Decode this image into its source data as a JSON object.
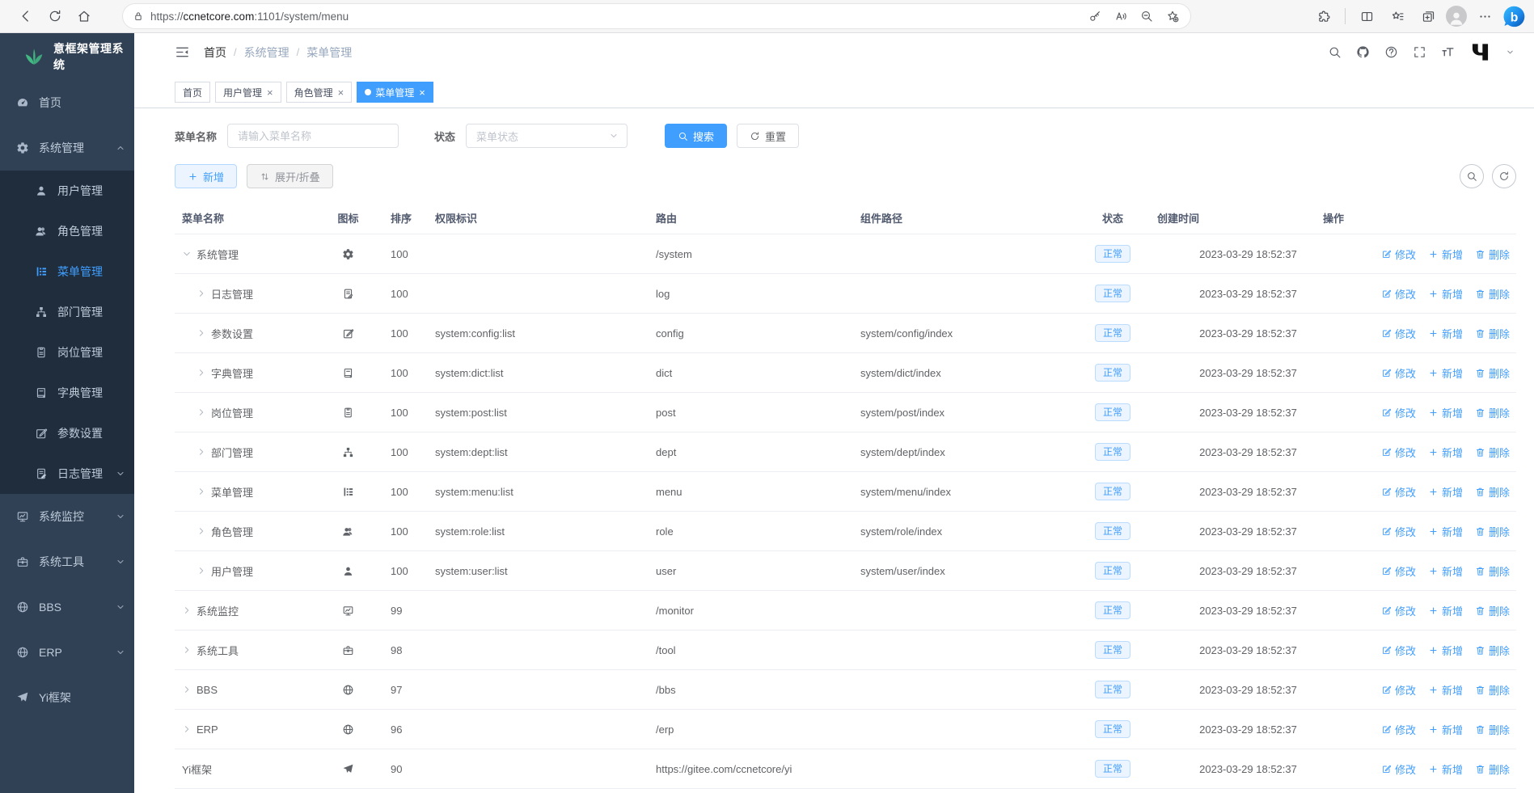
{
  "browser": {
    "url_scheme": "https://",
    "url_domain": "ccnetcore.com",
    "url_rest": ":1101/system/menu"
  },
  "sidebar": {
    "title": "意框架管理系统",
    "menu": [
      {
        "key": "home",
        "label": "首页",
        "icon": "dashboard",
        "level": "top"
      },
      {
        "key": "system",
        "label": "系统管理",
        "icon": "gear",
        "level": "top",
        "caret": "up"
      },
      {
        "key": "user",
        "label": "用户管理",
        "icon": "user",
        "level": "sub"
      },
      {
        "key": "role",
        "label": "角色管理",
        "icon": "users",
        "level": "sub"
      },
      {
        "key": "menu",
        "label": "菜单管理",
        "icon": "tree",
        "level": "sub",
        "active": true
      },
      {
        "key": "dept",
        "label": "部门管理",
        "icon": "org",
        "level": "sub"
      },
      {
        "key": "post",
        "label": "岗位管理",
        "icon": "post",
        "level": "sub"
      },
      {
        "key": "dict",
        "label": "字典管理",
        "icon": "dict",
        "level": "sub"
      },
      {
        "key": "config",
        "label": "参数设置",
        "icon": "edit",
        "level": "sub"
      },
      {
        "key": "log",
        "label": "日志管理",
        "icon": "log",
        "level": "sub",
        "caret": "down"
      },
      {
        "key": "monitor",
        "label": "系统监控",
        "icon": "monitor",
        "level": "top",
        "caret": "down"
      },
      {
        "key": "tool",
        "label": "系统工具",
        "icon": "tool",
        "level": "top",
        "caret": "down"
      },
      {
        "key": "bbs",
        "label": "BBS",
        "icon": "globe",
        "level": "top",
        "caret": "down"
      },
      {
        "key": "erp",
        "label": "ERP",
        "icon": "globe",
        "level": "top",
        "caret": "down"
      },
      {
        "key": "yi",
        "label": "Yi框架",
        "icon": "send",
        "level": "top"
      }
    ]
  },
  "topbar": {
    "breadcrumb": [
      "首页",
      "系统管理",
      "菜单管理"
    ]
  },
  "tabs": [
    {
      "key": "home",
      "label": "首页"
    },
    {
      "key": "user",
      "label": "用户管理",
      "closable": true
    },
    {
      "key": "role",
      "label": "角色管理",
      "closable": true
    },
    {
      "key": "menu",
      "label": "菜单管理",
      "closable": true,
      "active": true
    }
  ],
  "filter": {
    "name_label": "菜单名称",
    "name_placeholder": "请输入菜单名称",
    "status_label": "状态",
    "status_placeholder": "菜单状态",
    "search": "搜索",
    "reset": "重置"
  },
  "toolbar": {
    "add": "新增",
    "toggle": "展开/折叠"
  },
  "table": {
    "columns": [
      {
        "key": "name",
        "label": "菜单名称"
      },
      {
        "key": "icon",
        "label": "图标"
      },
      {
        "key": "sort",
        "label": "排序"
      },
      {
        "key": "perm",
        "label": "权限标识"
      },
      {
        "key": "route",
        "label": "路由"
      },
      {
        "key": "comp",
        "label": "组件路径"
      },
      {
        "key": "status",
        "label": "状态"
      },
      {
        "key": "time",
        "label": "创建时间"
      },
      {
        "key": "ops",
        "label": "操作"
      }
    ],
    "ops": {
      "edit": "修改",
      "add": "新增",
      "del": "删除"
    },
    "rows": [
      {
        "name": "系统管理",
        "level": 0,
        "arrow": "down",
        "icon": "gear",
        "sort": "100",
        "perm": "",
        "route": "/system",
        "comp": "",
        "status": "正常",
        "time": "2023-03-29 18:52:37"
      },
      {
        "name": "日志管理",
        "level": 1,
        "arrow": "right",
        "icon": "log",
        "sort": "100",
        "perm": "",
        "route": "log",
        "comp": "",
        "status": "正常",
        "time": "2023-03-29 18:52:37"
      },
      {
        "name": "参数设置",
        "level": 1,
        "arrow": "right",
        "icon": "edit",
        "sort": "100",
        "perm": "system:config:list",
        "route": "config",
        "comp": "system/config/index",
        "status": "正常",
        "time": "2023-03-29 18:52:37"
      },
      {
        "name": "字典管理",
        "level": 1,
        "arrow": "right",
        "icon": "dict",
        "sort": "100",
        "perm": "system:dict:list",
        "route": "dict",
        "comp": "system/dict/index",
        "status": "正常",
        "time": "2023-03-29 18:52:37"
      },
      {
        "name": "岗位管理",
        "level": 1,
        "arrow": "right",
        "icon": "post",
        "sort": "100",
        "perm": "system:post:list",
        "route": "post",
        "comp": "system/post/index",
        "status": "正常",
        "time": "2023-03-29 18:52:37"
      },
      {
        "name": "部门管理",
        "level": 1,
        "arrow": "right",
        "icon": "org",
        "sort": "100",
        "perm": "system:dept:list",
        "route": "dept",
        "comp": "system/dept/index",
        "status": "正常",
        "time": "2023-03-29 18:52:37"
      },
      {
        "name": "菜单管理",
        "level": 1,
        "arrow": "right",
        "icon": "tree",
        "sort": "100",
        "perm": "system:menu:list",
        "route": "menu",
        "comp": "system/menu/index",
        "status": "正常",
        "time": "2023-03-29 18:52:37"
      },
      {
        "name": "角色管理",
        "level": 1,
        "arrow": "right",
        "icon": "users",
        "sort": "100",
        "perm": "system:role:list",
        "route": "role",
        "comp": "system/role/index",
        "status": "正常",
        "time": "2023-03-29 18:52:37"
      },
      {
        "name": "用户管理",
        "level": 1,
        "arrow": "right",
        "icon": "user",
        "sort": "100",
        "perm": "system:user:list",
        "route": "user",
        "comp": "system/user/index",
        "status": "正常",
        "time": "2023-03-29 18:52:37"
      },
      {
        "name": "系统监控",
        "level": 0,
        "arrow": "right",
        "icon": "monitor",
        "sort": "99",
        "perm": "",
        "route": "/monitor",
        "comp": "",
        "status": "正常",
        "time": "2023-03-29 18:52:37"
      },
      {
        "name": "系统工具",
        "level": 0,
        "arrow": "right",
        "icon": "tool",
        "sort": "98",
        "perm": "",
        "route": "/tool",
        "comp": "",
        "status": "正常",
        "time": "2023-03-29 18:52:37"
      },
      {
        "name": "BBS",
        "level": 0,
        "arrow": "right",
        "icon": "globe",
        "sort": "97",
        "perm": "",
        "route": "/bbs",
        "comp": "",
        "status": "正常",
        "time": "2023-03-29 18:52:37"
      },
      {
        "name": "ERP",
        "level": 0,
        "arrow": "right",
        "icon": "globe",
        "sort": "96",
        "perm": "",
        "route": "/erp",
        "comp": "",
        "status": "正常",
        "time": "2023-03-29 18:52:37"
      },
      {
        "name": "Yi框架",
        "level": 0,
        "arrow": "none",
        "icon": "send",
        "sort": "90",
        "perm": "",
        "route": "https://gitee.com/ccnetcore/yi",
        "comp": "",
        "status": "正常",
        "time": "2023-03-29 18:52:37"
      }
    ]
  },
  "colors": {
    "accent": "#409eff",
    "sidebar_bg": "#304156",
    "submenu_bg": "#1f2d3d",
    "badge_bg": "#ecf5ff",
    "badge_border": "#b9dcff",
    "badge_text": "#409eff",
    "logo_green": "#42b983"
  },
  "icons": {
    "search": "magnifier",
    "refresh": "circular-arrow",
    "add": "plus",
    "delete": "trash-can",
    "edit": "pen-square",
    "toggle": "up-down-arrows"
  }
}
